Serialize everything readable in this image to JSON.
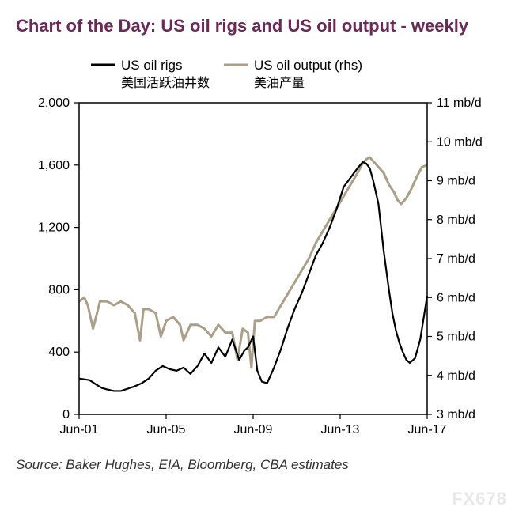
{
  "title_text": "Chart of the Day: US oil rigs and US oil output - weekly",
  "title_color": "#6a2a58",
  "source_text": "Source: Baker Hughes, EIA, Bloomberg, CBA estimates",
  "watermark_text": "FX678",
  "chart": {
    "type": "line-dual-axis",
    "background_color": "#ffffff",
    "plot_border_color": "#000000",
    "plot_border_width": 1.5,
    "legend": {
      "rigs_label": "US oil rigs",
      "output_label": "US oil output (rhs)",
      "rigs_cn": "美国活跃油井数",
      "output_cn": "美油产量",
      "fontsize": 17,
      "cn_fontsize": 16,
      "rigs_color": "#000000",
      "output_color": "#aaa08a",
      "line_width": 3
    },
    "x_axis": {
      "ticks": [
        "Jun-01",
        "Jun-05",
        "Jun-09",
        "Jun-13",
        "Jun-17"
      ],
      "tick_positions": [
        0,
        0.25,
        0.5,
        0.75,
        1.0
      ],
      "fontsize": 16,
      "tick_len": 6
    },
    "y_left": {
      "min": 0,
      "max": 2000,
      "step": 400,
      "ticks": [
        0,
        400,
        800,
        1200,
        1600,
        2000
      ],
      "fontsize": 16,
      "tick_len": 6
    },
    "y_right": {
      "min": 3,
      "max": 11,
      "step": 1,
      "ticks": [
        3,
        4,
        5,
        6,
        7,
        8,
        9,
        10,
        11
      ],
      "suffix": " mb/d",
      "fontsize": 16,
      "tick_len": 6
    },
    "series": {
      "rigs": {
        "color": "#000000",
        "width": 2.2,
        "x": [
          0.0,
          0.03,
          0.05,
          0.065,
          0.08,
          0.1,
          0.12,
          0.14,
          0.16,
          0.18,
          0.2,
          0.22,
          0.24,
          0.26,
          0.28,
          0.3,
          0.32,
          0.34,
          0.36,
          0.38,
          0.4,
          0.42,
          0.44,
          0.46,
          0.475,
          0.485,
          0.5,
          0.512,
          0.525,
          0.54,
          0.56,
          0.58,
          0.6,
          0.62,
          0.64,
          0.66,
          0.68,
          0.7,
          0.72,
          0.74,
          0.76,
          0.78,
          0.8,
          0.815,
          0.825,
          0.835,
          0.845,
          0.86,
          0.875,
          0.89,
          0.9,
          0.91,
          0.92,
          0.93,
          0.94,
          0.95,
          0.965,
          0.98,
          1.0
        ],
        "y": [
          230,
          220,
          190,
          170,
          160,
          150,
          150,
          165,
          180,
          200,
          230,
          280,
          310,
          290,
          280,
          300,
          260,
          310,
          390,
          330,
          430,
          370,
          480,
          350,
          410,
          430,
          500,
          280,
          210,
          200,
          300,
          420,
          560,
          680,
          780,
          900,
          1020,
          1100,
          1200,
          1320,
          1460,
          1520,
          1580,
          1620,
          1610,
          1580,
          1500,
          1350,
          1050,
          800,
          650,
          540,
          460,
          400,
          350,
          330,
          360,
          480,
          760
        ]
      },
      "output": {
        "color": "#aaa08a",
        "width": 3,
        "x": [
          0.0,
          0.015,
          0.025,
          0.04,
          0.06,
          0.08,
          0.1,
          0.12,
          0.14,
          0.16,
          0.175,
          0.185,
          0.2,
          0.22,
          0.235,
          0.25,
          0.27,
          0.29,
          0.3,
          0.32,
          0.34,
          0.36,
          0.38,
          0.4,
          0.42,
          0.44,
          0.455,
          0.47,
          0.485,
          0.495,
          0.505,
          0.52,
          0.54,
          0.56,
          0.58,
          0.6,
          0.62,
          0.64,
          0.66,
          0.68,
          0.7,
          0.72,
          0.74,
          0.76,
          0.78,
          0.8,
          0.815,
          0.825,
          0.835,
          0.845,
          0.86,
          0.875,
          0.89,
          0.905,
          0.915,
          0.925,
          0.94,
          0.955,
          0.97,
          0.985,
          1.0
        ],
        "y": [
          5.9,
          6.0,
          5.8,
          5.2,
          5.9,
          5.9,
          5.8,
          5.9,
          5.8,
          5.6,
          4.9,
          5.7,
          5.7,
          5.6,
          5.0,
          5.4,
          5.5,
          5.3,
          4.9,
          5.3,
          5.3,
          5.2,
          5.0,
          5.3,
          5.1,
          5.1,
          4.4,
          5.2,
          5.1,
          4.2,
          5.4,
          5.4,
          5.5,
          5.5,
          5.8,
          6.1,
          6.4,
          6.7,
          7.0,
          7.4,
          7.7,
          8.0,
          8.3,
          8.6,
          8.9,
          9.2,
          9.45,
          9.55,
          9.6,
          9.5,
          9.35,
          9.2,
          8.9,
          8.7,
          8.5,
          8.4,
          8.55,
          8.8,
          9.1,
          9.35,
          9.4
        ]
      }
    }
  }
}
